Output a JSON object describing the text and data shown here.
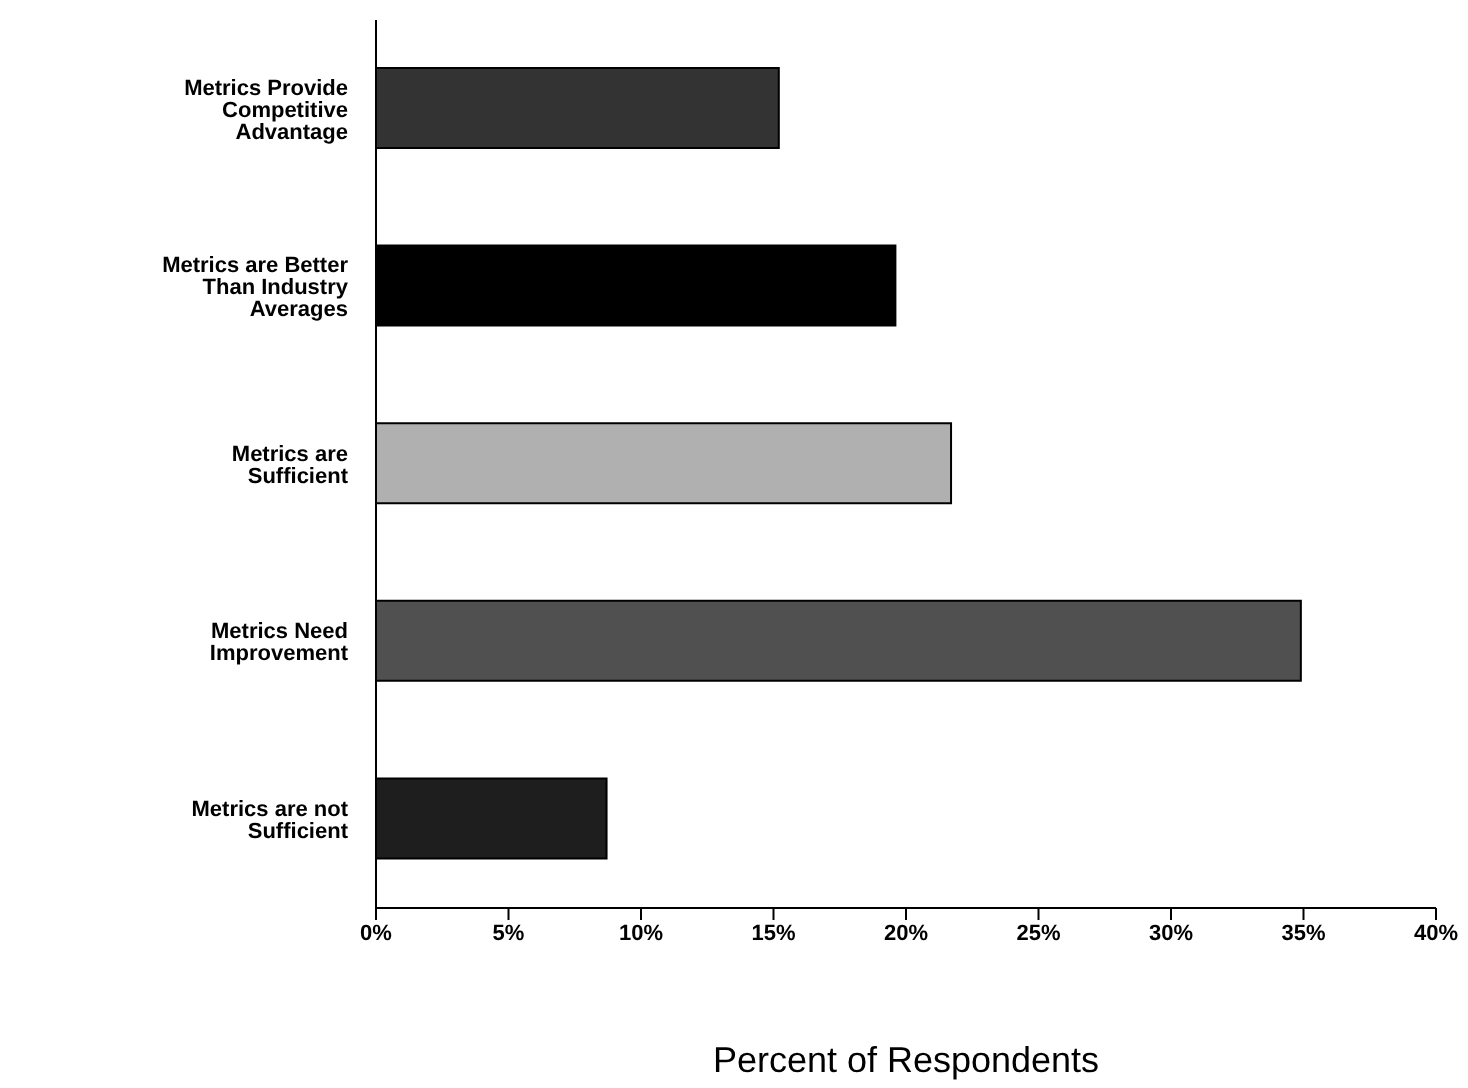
{
  "chart_data": {
    "type": "bar",
    "orientation": "horizontal",
    "xlabel": "Percent of Respondents",
    "categories": [
      "Metrics Provide Competitive Advantage",
      "Metrics are Better Than Industry Averages",
      "Metrics are Sufficient",
      "Metrics Need Improvement",
      "Metrics are not Sufficient"
    ],
    "values": [
      15.2,
      19.6,
      21.7,
      34.9,
      8.7
    ],
    "colors": [
      "#333333",
      "#000000",
      "#b0b0b0",
      "#505050",
      "#1e1e1e"
    ],
    "xlim": [
      0,
      40
    ],
    "xticks": [
      {
        "value": 0,
        "label": "0%"
      },
      {
        "value": 5,
        "label": "5%"
      },
      {
        "value": 10,
        "label": "10%"
      },
      {
        "value": 15,
        "label": "15%"
      },
      {
        "value": 20,
        "label": "20%"
      },
      {
        "value": 25,
        "label": "25%"
      },
      {
        "value": 30,
        "label": "30%"
      },
      {
        "value": 35,
        "label": "35%"
      },
      {
        "value": 40,
        "label": "40%"
      }
    ],
    "grid": false,
    "legend": false
  }
}
